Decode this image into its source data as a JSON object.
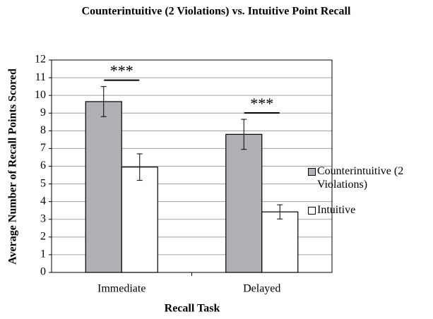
{
  "chart_data": {
    "type": "bar",
    "title": "Counterintuitive (2 Violations) vs. Intuitive Point Recall",
    "x_label": "Recall Task",
    "y_label": "Average Number of Recall Points Scored",
    "categories": [
      "Immediate",
      "Delayed"
    ],
    "series": [
      {
        "name": "Counterintuitive (2 Violations)",
        "color": "#b1b1b5",
        "values": [
          9.65,
          7.8
        ],
        "errors": [
          0.85,
          0.85
        ]
      },
      {
        "name": "Intuitive",
        "color": "#ffffff",
        "values": [
          5.95,
          3.42
        ],
        "errors": [
          0.75,
          0.4
        ]
      }
    ],
    "annotations": [
      {
        "text": "***"
      },
      {
        "text": "***"
      }
    ],
    "ylim": [
      0,
      12
    ],
    "yticks": [
      0,
      1,
      2,
      3,
      4,
      5,
      6,
      7,
      8,
      9,
      10,
      11,
      12
    ],
    "grid": true,
    "legend": "right"
  }
}
